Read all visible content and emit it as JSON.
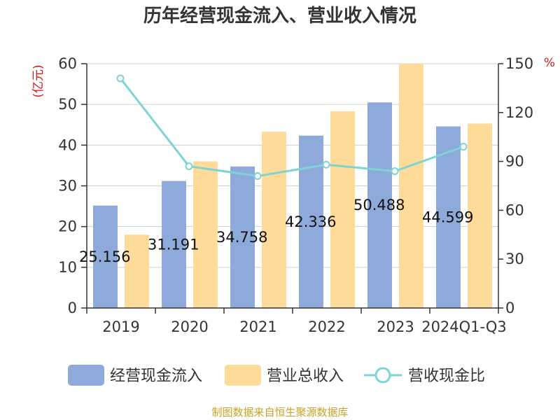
{
  "chart_data": {
    "type": "bar",
    "title": "历年经营现金流入、营业收入情况",
    "categories": [
      "2019",
      "2020",
      "2021",
      "2022",
      "2023",
      "2024Q1-Q3"
    ],
    "series": [
      {
        "name": "经营现金流入",
        "type": "bar",
        "axis": "left",
        "color": "#8eaadb",
        "values": [
          25.156,
          31.191,
          34.758,
          42.336,
          50.488,
          44.599
        ],
        "labels": [
          "25.156",
          "31.191",
          "34.758",
          "42.336",
          "50.488",
          "44.599"
        ]
      },
      {
        "name": "营业总收入",
        "type": "bar",
        "axis": "left",
        "color": "#ffdb9a",
        "values": [
          18.0,
          36.0,
          43.3,
          48.3,
          60.0,
          45.3
        ]
      },
      {
        "name": "营收现金比",
        "type": "line",
        "axis": "right",
        "color": "#7fd3d3",
        "values": [
          141,
          87,
          81,
          88,
          84,
          99
        ]
      }
    ],
    "y_left": {
      "label": "(亿元)",
      "ylim": [
        0,
        60
      ],
      "ticks": [
        0,
        10,
        20,
        30,
        40,
        50,
        60
      ]
    },
    "y_right": {
      "label": "%",
      "ylim": [
        0,
        150
      ],
      "ticks": [
        0,
        30,
        60,
        90,
        120,
        150
      ]
    },
    "grid": true,
    "legend_position": "bottom"
  },
  "footer": {
    "source": "制图数据来自恒生聚源数据库"
  }
}
